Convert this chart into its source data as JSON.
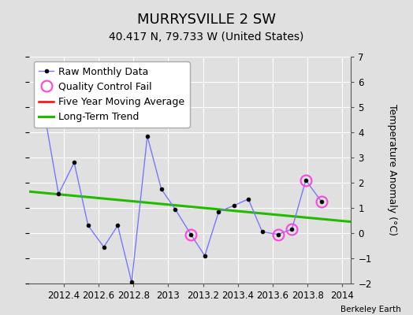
{
  "title": "MURRYSVILLE 2 SW",
  "subtitle": "40.417 N, 79.733 W (United States)",
  "attribution": "Berkeley Earth",
  "raw_x": [
    2012.29,
    2012.37,
    2012.46,
    2012.54,
    2012.63,
    2012.71,
    2012.79,
    2012.88,
    2012.96,
    2013.04,
    2013.13,
    2013.21,
    2013.29,
    2013.38,
    2013.46,
    2013.54,
    2013.63,
    2013.71,
    2013.79,
    2013.88
  ],
  "raw_y": [
    4.7,
    1.55,
    2.8,
    0.3,
    -0.55,
    0.3,
    -1.95,
    3.85,
    1.75,
    0.95,
    -0.05,
    -0.9,
    0.85,
    1.1,
    1.35,
    0.05,
    -0.05,
    0.15,
    2.1,
    1.25
  ],
  "qc_fail_x": [
    2013.13,
    2013.63,
    2013.71,
    2013.79,
    2013.88
  ],
  "qc_fail_y": [
    -0.05,
    -0.05,
    0.15,
    2.1,
    1.25
  ],
  "trend_x": [
    2012.2,
    2014.05
  ],
  "trend_y": [
    1.65,
    0.45
  ],
  "xlim": [
    2012.2,
    2014.05
  ],
  "ylim": [
    -2.0,
    7.0
  ],
  "xticks": [
    2012.4,
    2012.6,
    2012.8,
    2013.0,
    2013.2,
    2013.4,
    2013.6,
    2013.8,
    2014.0
  ],
  "yticks": [
    -2,
    -1,
    0,
    1,
    2,
    3,
    4,
    5,
    6,
    7
  ],
  "raw_line_color": "#7777ff",
  "raw_marker_color": "#000000",
  "qc_marker_color": "#ff44dd",
  "trend_color": "#22bb00",
  "moving_avg_color": "#ff0000",
  "bg_color": "#e0e0e0",
  "plot_bg_color": "#e0e0e0",
  "grid_color": "#ffffff",
  "ylabel_right": "Temperature Anomaly (°C)",
  "title_fontsize": 13,
  "subtitle_fontsize": 10,
  "legend_fontsize": 9
}
